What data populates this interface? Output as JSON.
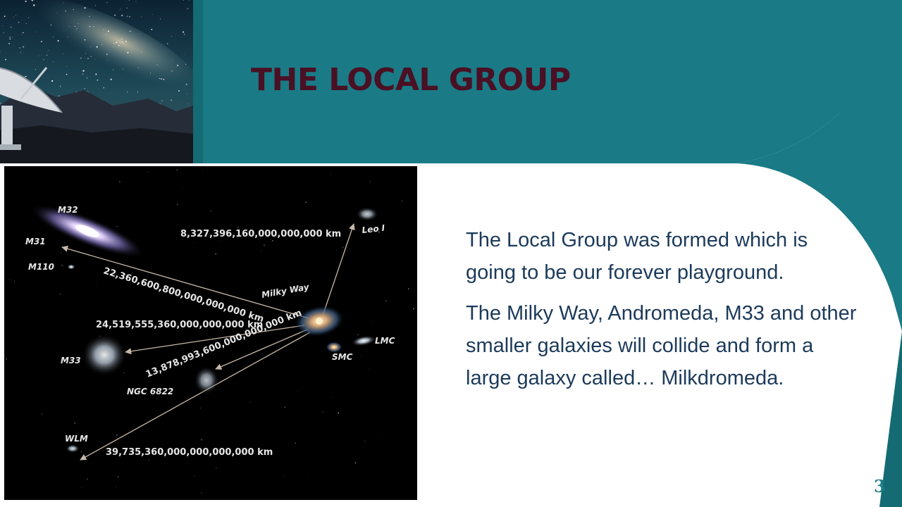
{
  "slide": {
    "title": "THE LOCAL GROUP",
    "paragraphs": [
      "The Local Group was formed which is going to be our forever playground.",
      "The Milky Way, Andromeda, M33 and other smaller galaxies will collide and form a large galaxy called… Milkdromeda."
    ],
    "page_number": "3"
  },
  "galaxy_map": {
    "galaxies": {
      "m32": "M32",
      "m31": "M31",
      "m110": "M110",
      "leo1": "Leo I",
      "milky_way": "Milky Way",
      "lmc": "LMC",
      "smc": "SMC",
      "m33": "M33",
      "ngc6822": "NGC 6822",
      "wlm": "WLM"
    },
    "distances": {
      "leo1": "8,327,396,160,000,000,000 km",
      "m31": "22,360,600,800,000,000,000 km",
      "m33": "24,519,555,360,000,000,000 km",
      "ngc6822": "13,878,993,600,000,000,000 km",
      "wlm": "39,735,360,000,000,000,000 km"
    }
  },
  "colors": {
    "teal": "#1a7b86",
    "teal_dark": "#146b74",
    "title": "#4a1024",
    "body_text": "#1c3a5a",
    "arrow": "#c8b8a8"
  }
}
